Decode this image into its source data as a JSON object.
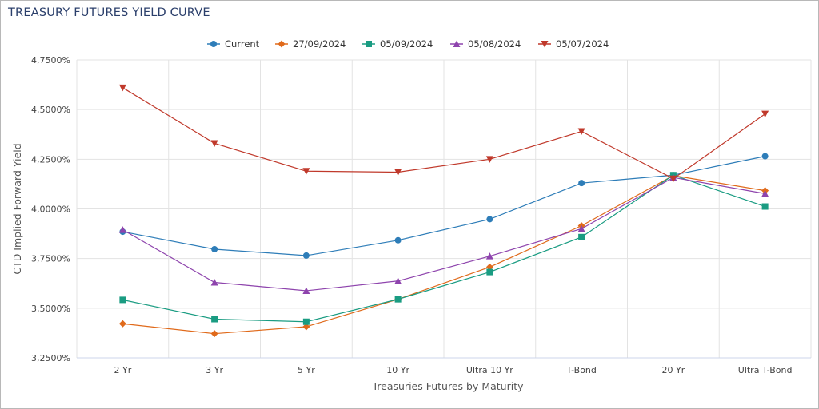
{
  "header": {
    "title": "TREASURY FUTURES YIELD CURVE"
  },
  "chart_data": {
    "type": "line",
    "title": "TREASURY FUTURES YIELD CURVE",
    "xlabel": "Treasuries Futures by Maturity",
    "ylabel": "CTD Implied Forward Yield",
    "categories": [
      "2 Yr",
      "3 Yr",
      "5 Yr",
      "10 Yr",
      "Ultra 10 Yr",
      "T-Bond",
      "20 Yr",
      "Ultra T-Bond"
    ],
    "ylim": [
      3.25,
      4.75
    ],
    "yticks": [
      3.25,
      3.5,
      3.75,
      4.0,
      4.25,
      4.5,
      4.75
    ],
    "ytick_labels": [
      "3,2500%",
      "3,5000%",
      "3,7500%",
      "4,0000%",
      "4,2500%",
      "4,5000%",
      "4,7500%"
    ],
    "grid": true,
    "legend_position": "top-center",
    "series": [
      {
        "name": "Current",
        "color": "#2e7db8",
        "marker": "circle",
        "values": [
          3.885,
          3.797,
          3.765,
          3.842,
          3.948,
          4.13,
          4.17,
          4.265
        ]
      },
      {
        "name": "27/09/2024",
        "color": "#e06a1b",
        "marker": "diamond",
        "values": [
          3.422,
          3.372,
          3.407,
          3.545,
          3.707,
          3.915,
          4.168,
          4.092
        ]
      },
      {
        "name": "05/09/2024",
        "color": "#1a9c82",
        "marker": "square",
        "values": [
          3.542,
          3.445,
          3.432,
          3.545,
          3.682,
          3.858,
          4.17,
          4.012
        ]
      },
      {
        "name": "05/08/2024",
        "color": "#8e44ad",
        "marker": "triangle-up",
        "values": [
          3.895,
          3.63,
          3.588,
          3.637,
          3.762,
          3.9,
          4.158,
          4.077
        ]
      },
      {
        "name": "05/07/2024",
        "color": "#c0392b",
        "marker": "triangle-down",
        "values": [
          4.61,
          4.33,
          4.19,
          4.185,
          4.25,
          4.39,
          4.152,
          4.478
        ]
      }
    ]
  }
}
